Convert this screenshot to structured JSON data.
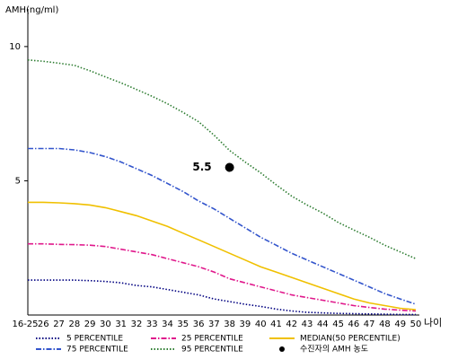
{
  "chart_data": {
    "type": "line",
    "y_label": "AMH(ng/ml)",
    "x_label": "나이",
    "categories": [
      "16-25",
      "26",
      "27",
      "28",
      "29",
      "30",
      "31",
      "32",
      "33",
      "34",
      "35",
      "36",
      "37",
      "38",
      "39",
      "40",
      "41",
      "42",
      "43",
      "44",
      "45",
      "46",
      "47",
      "48",
      "49",
      "50"
    ],
    "ylim": [
      0,
      11.4
    ],
    "yticks": [
      5,
      10
    ],
    "series": [
      {
        "name": "5 PERCENTILE",
        "color": "#000080",
        "dash": "1.5 2",
        "values": [
          1.3,
          1.3,
          1.3,
          1.3,
          1.28,
          1.25,
          1.2,
          1.1,
          1.05,
          0.95,
          0.85,
          0.75,
          0.6,
          0.5,
          0.4,
          0.32,
          0.22,
          0.15,
          0.1,
          0.08,
          0.06,
          0.05,
          0.04,
          0.03,
          0.02,
          0.02
        ]
      },
      {
        "name": "25 PERCENTILE",
        "color": "#e0198c",
        "dash": "6 2 1.5 2",
        "values": [
          2.65,
          2.65,
          2.63,
          2.62,
          2.6,
          2.55,
          2.45,
          2.35,
          2.25,
          2.1,
          1.95,
          1.8,
          1.6,
          1.35,
          1.2,
          1.05,
          0.9,
          0.75,
          0.65,
          0.55,
          0.45,
          0.35,
          0.28,
          0.22,
          0.18,
          0.15
        ]
      },
      {
        "name": "MEDIAN(50 PERCENTILE)",
        "color": "#f0c000",
        "dash": "",
        "values": [
          4.2,
          4.2,
          4.18,
          4.15,
          4.1,
          4.0,
          3.85,
          3.7,
          3.5,
          3.3,
          3.05,
          2.8,
          2.55,
          2.3,
          2.05,
          1.8,
          1.6,
          1.4,
          1.2,
          1.0,
          0.8,
          0.6,
          0.45,
          0.35,
          0.25,
          0.2
        ]
      },
      {
        "name": "75 PERCENTILE",
        "color": "#3355cc",
        "dash": "6 2 1.5 2",
        "values": [
          6.2,
          6.2,
          6.2,
          6.15,
          6.05,
          5.9,
          5.7,
          5.45,
          5.2,
          4.9,
          4.6,
          4.25,
          3.95,
          3.6,
          3.25,
          2.9,
          2.6,
          2.3,
          2.05,
          1.8,
          1.55,
          1.3,
          1.05,
          0.8,
          0.6,
          0.4
        ]
      },
      {
        "name": "95 PERCENTILE",
        "color": "#2e7d32",
        "dash": "1.5 2",
        "values": [
          9.5,
          9.45,
          9.38,
          9.3,
          9.1,
          8.87,
          8.65,
          8.4,
          8.15,
          7.87,
          7.55,
          7.2,
          6.7,
          6.13,
          5.7,
          5.3,
          4.85,
          4.43,
          4.1,
          3.8,
          3.45,
          3.17,
          2.9,
          2.6,
          2.35,
          2.1
        ]
      }
    ],
    "point": {
      "name": "수진자의 AMH 농도",
      "category": "38",
      "value": 5.5,
      "color": "#000000"
    }
  }
}
